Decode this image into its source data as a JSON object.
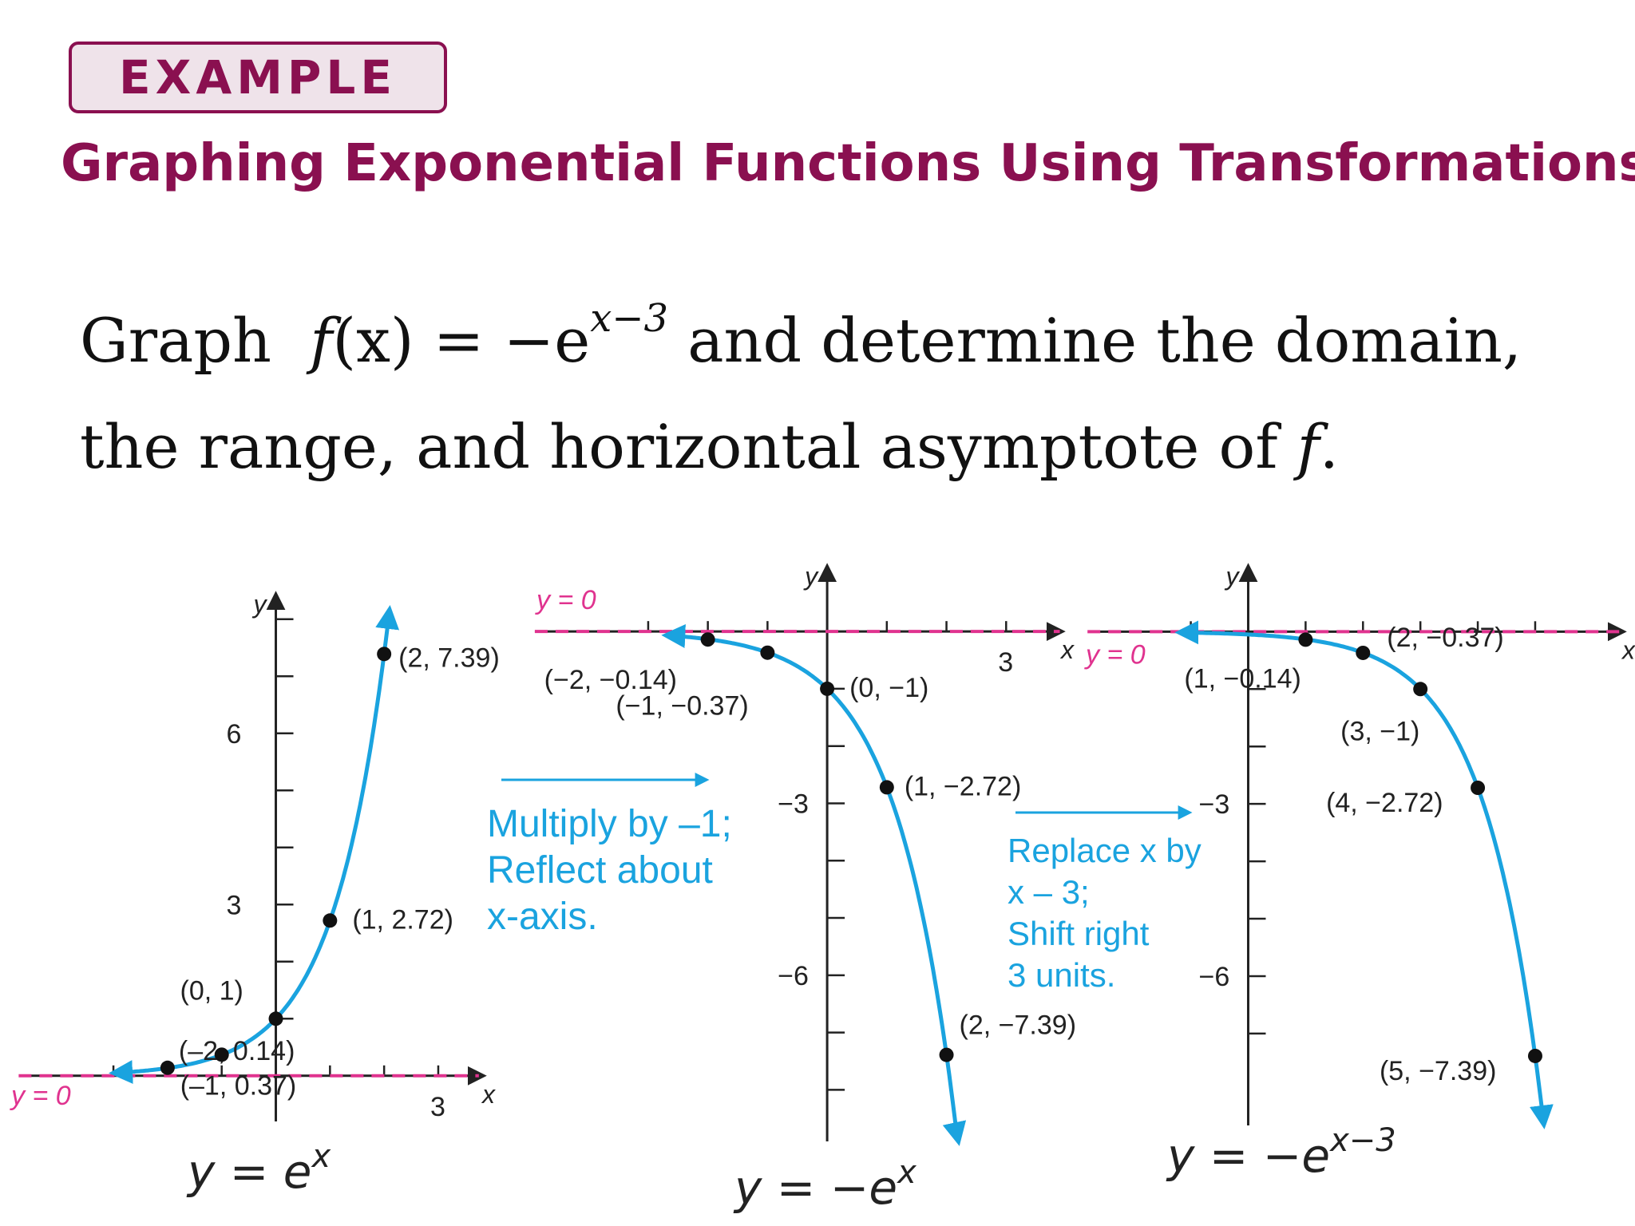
{
  "header": {
    "badge_label": "EXAMPLE",
    "title": "Graphing Exponential Functions Using Transformations"
  },
  "problem": {
    "text_graph": "Graph",
    "func_name": "f",
    "func_arg": "(x)",
    "func_rhs": " = −e",
    "exponent": "x−3",
    "text_after_1": " and determine the domain,",
    "text_line2": "the range, and horizontal asymptote of ",
    "text_f": "f",
    "text_period": "."
  },
  "colors": {
    "accent": "#8a1050",
    "curve": "#1aa3df",
    "asymptote": "#e0338f",
    "axis": "#222222"
  },
  "arrows": [
    {
      "lines": [
        "Multiply by –1;",
        "Reflect about",
        "x-axis."
      ]
    },
    {
      "lines": [
        "Replace x by",
        "x – 3;",
        "Shift right",
        "3 units."
      ]
    }
  ],
  "chart_data": [
    {
      "type": "line",
      "caption": "y = e",
      "caption_sup": "x",
      "asymptote_label": "y = 0",
      "xlabel": "x",
      "ylabel": "y",
      "xlim": [
        -4.8,
        3.9
      ],
      "ylim": [
        -0.8,
        8.5
      ],
      "x_ticks": [
        -3,
        -2,
        -1,
        1,
        2,
        3
      ],
      "x_tick_labels": [
        {
          "value": 3,
          "label": "3"
        }
      ],
      "y_ticks": [
        1,
        2,
        3,
        4,
        5,
        6,
        7,
        8
      ],
      "y_tick_labels": [
        {
          "value": 3,
          "label": "3"
        },
        {
          "value": 6,
          "label": "6"
        }
      ],
      "curve": {
        "fn": "exp",
        "shift": 0,
        "sign": 1,
        "x_from": -3.0,
        "x_to": 2.1
      },
      "points": [
        {
          "x": -2,
          "y": 0.14,
          "label": "(–2, 0.14)"
        },
        {
          "x": -1,
          "y": 0.37,
          "label": "(–1, 0.37)"
        },
        {
          "x": 0,
          "y": 1,
          "label": "(0, 1)"
        },
        {
          "x": 1,
          "y": 2.72,
          "label": "(1, 2.72)"
        },
        {
          "x": 2,
          "y": 7.39,
          "label": "(2, 7.39)"
        }
      ]
    },
    {
      "type": "line",
      "caption": "y = −e",
      "caption_sup": "x",
      "asymptote_label": "y = 0",
      "xlabel": "x",
      "ylabel": "y",
      "xlim": [
        -5.1,
        4.0
      ],
      "ylim": [
        -8.9,
        1.2
      ],
      "x_ticks": [
        -3,
        -2,
        -1,
        1,
        2,
        3
      ],
      "x_tick_labels": [
        {
          "value": 3,
          "label": "3"
        }
      ],
      "y_ticks": [
        -1,
        -2,
        -3,
        -4,
        -5,
        -6,
        -7,
        -8
      ],
      "y_tick_labels": [
        {
          "value": -3,
          "label": "−3"
        },
        {
          "value": -6,
          "label": "−6"
        }
      ],
      "curve": {
        "fn": "exp",
        "shift": 0,
        "sign": -1,
        "x_from": -2.7,
        "x_to": 2.2
      },
      "points": [
        {
          "x": -2,
          "y": -0.14,
          "label": "(−2, −0.14)"
        },
        {
          "x": -1,
          "y": -0.37,
          "label": "(−1, −0.37)"
        },
        {
          "x": 0,
          "y": -1,
          "label": "(0, −1)"
        },
        {
          "x": 1,
          "y": -2.72,
          "label": "(1, −2.72)"
        },
        {
          "x": 2,
          "y": -7.39,
          "label": "(2, −7.39)"
        }
      ]
    },
    {
      "type": "line",
      "caption": "y = −e",
      "caption_sup": "x−3",
      "asymptote_label": "y = 0",
      "xlabel": "x",
      "ylabel": "y",
      "xlim": [
        -2.9,
        6.6
      ],
      "ylim": [
        -8.6,
        1.2
      ],
      "x_ticks": [
        -1,
        1,
        2,
        3,
        4,
        5
      ],
      "x_tick_labels": [],
      "y_ticks": [
        -1,
        -2,
        -3,
        -4,
        -5,
        -6,
        -7
      ],
      "y_tick_labels": [
        {
          "value": -3,
          "label": "−3"
        },
        {
          "value": -6,
          "label": "−6"
        }
      ],
      "curve": {
        "fn": "exp",
        "shift": 3,
        "sign": -1,
        "x_from": -1.2,
        "x_to": 5.15
      },
      "points": [
        {
          "x": 1,
          "y": -0.14,
          "label": "(1, −0.14)"
        },
        {
          "x": 2,
          "y": -0.37,
          "label": "(2, −0.37)"
        },
        {
          "x": 3,
          "y": -1,
          "label": "(3, −1)"
        },
        {
          "x": 4,
          "y": -2.72,
          "label": "(4, −2.72)"
        },
        {
          "x": 5,
          "y": -7.39,
          "label": "(5, −7.39)"
        }
      ]
    }
  ]
}
